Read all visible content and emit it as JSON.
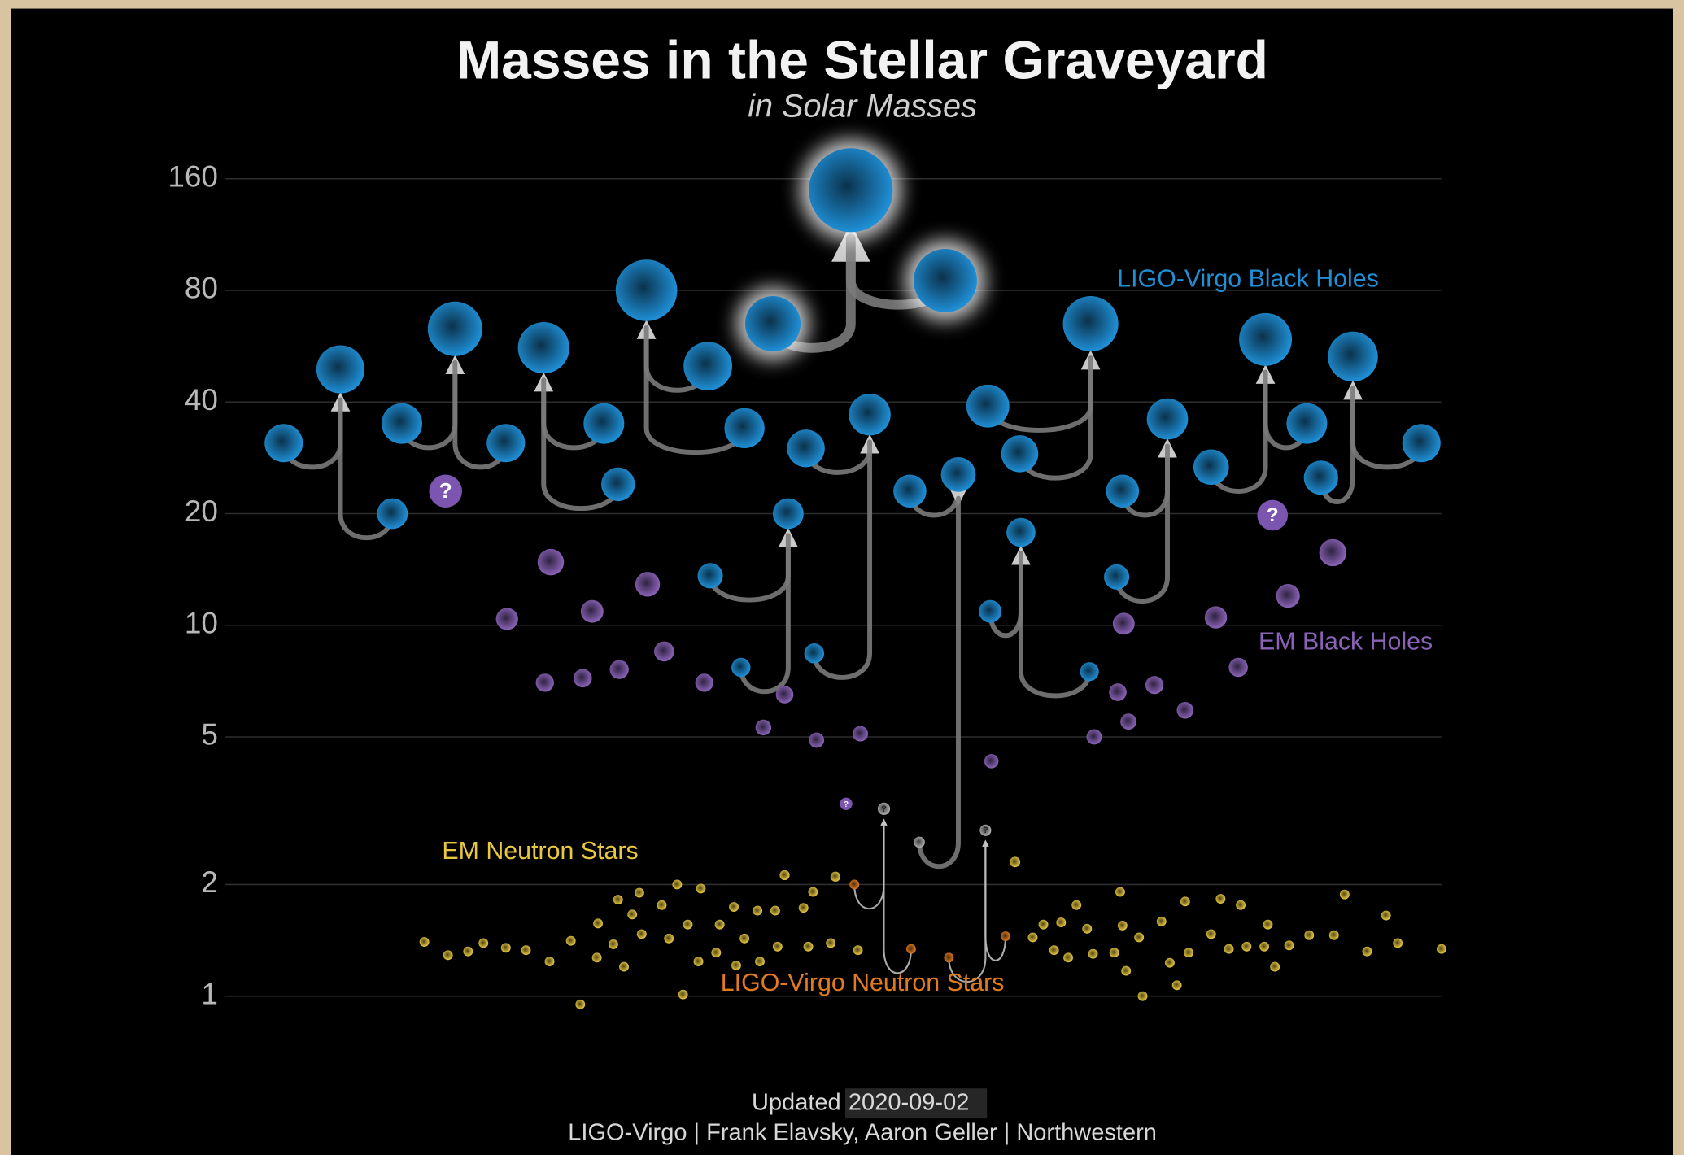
{
  "chart_data": {
    "type": "scatter",
    "title": "Masses in the Stellar Graveyard",
    "subtitle": "in Solar Masses",
    "log_y": true,
    "grid": true,
    "xlim": [
      -2,
      102
    ],
    "ylim": [
      1,
      160
    ],
    "yticks": [
      1,
      2,
      5,
      10,
      20,
      40,
      80,
      160
    ],
    "mass_gap_color": "#b0b0b0",
    "series": [
      {
        "name": "LIGO-Virgo Black Holes",
        "color": "#1f8fd6",
        "mergers": [
          {
            "x": [
              2.2,
              11.4,
              7.0
            ],
            "values": [
              31,
              20,
              49
            ]
          },
          {
            "x": [
              12.2,
              21.0,
              16.7
            ],
            "values": [
              35,
              31,
              63
            ]
          },
          {
            "x": [
              29.3,
              30.5,
              24.2
            ],
            "values": [
              35,
              24,
              56
            ]
          },
          {
            "x": [
              38.1,
              41.2,
              32.9
            ],
            "values": [
              50,
              34,
              80
            ]
          },
          {
            "x": [
              43.6,
              58.2,
              50.2
            ],
            "values": [
              65,
              85,
              149
            ],
            "highlight": true
          },
          {
            "x": [
              38.3,
              40.9,
              44.9
            ],
            "values": [
              13.6,
              7.7,
              20
            ]
          },
          {
            "x": [
              46.4,
              47.1,
              51.8
            ],
            "values": [
              30,
              8.4,
              37
            ]
          },
          {
            "x": [
              55.2,
              56.0,
              59.3
            ],
            "values": [
              23,
              2.6,
              25.5
            ],
            "colors": [
              "#1f8fd6",
              "#b0b0b0",
              "#1f8fd6"
            ]
          },
          {
            "x": [
              61.8,
              64.5,
              70.5
            ],
            "values": [
              39,
              29,
              65
            ]
          },
          {
            "x": [
              62.0,
              70.4,
              64.6
            ],
            "values": [
              10.9,
              7.5,
              17.8
            ]
          },
          {
            "x": [
              73.2,
              72.7,
              77.0
            ],
            "values": [
              23,
              13.5,
              36
            ]
          },
          {
            "x": [
              80.7,
              88.8,
              85.3
            ],
            "values": [
              26.7,
              35,
              59
            ]
          },
          {
            "x": [
              90.0,
              98.5,
              92.7
            ],
            "values": [
              25,
              31,
              53
            ]
          }
        ]
      },
      {
        "name": "EM Black Holes",
        "color": "#8a63b8",
        "x": [
          21.1,
          24.8,
          24.3,
          27.5,
          28.3,
          30.6,
          33.0,
          34.4,
          37.8,
          42.8,
          44.6,
          47.3,
          51.0,
          62.1,
          70.8,
          72.8,
          73.3,
          73.7,
          75.9,
          78.5,
          81.1,
          83.0,
          87.2,
          91.0
        ],
        "values": [
          10.4,
          14.8,
          7.0,
          7.2,
          10.9,
          7.6,
          12.9,
          8.5,
          7.0,
          5.3,
          6.5,
          4.9,
          5.1,
          4.3,
          5.0,
          6.6,
          10.1,
          5.5,
          6.9,
          5.9,
          10.5,
          7.7,
          12.0,
          15.7
        ]
      },
      {
        "name": "EM Neutron Stars",
        "color": "#e8c840",
        "x": [
          14.1,
          16.1,
          17.8,
          19.1,
          21.0,
          22.7,
          24.7,
          26.5,
          27.3,
          28.8,
          28.7,
          30.1,
          30.5,
          31.0,
          31.7,
          32.3,
          32.5,
          34.2,
          34.8,
          35.5,
          36.0,
          36.4,
          37.3,
          37.5,
          38.8,
          39.1,
          40.3,
          40.5,
          41.2,
          42.3,
          42.5,
          43.8,
          44.0,
          44.6,
          46.2,
          46.6,
          47.0,
          48.5,
          48.9,
          50.8,
          64.1,
          65.6,
          66.5,
          67.4,
          68.0,
          68.6,
          69.3,
          70.2,
          70.7,
          72.5,
          73.0,
          73.2,
          73.5,
          74.6,
          74.9,
          76.5,
          77.2,
          77.8,
          78.5,
          78.8,
          80.7,
          81.5,
          82.2,
          83.2,
          83.7,
          85.2,
          85.5,
          86.1,
          87.3,
          89.0,
          91.1,
          92.0,
          93.9,
          95.5,
          96.5,
          100.2
        ],
        "values": [
          1.4,
          1.29,
          1.32,
          1.39,
          1.35,
          1.33,
          1.24,
          1.41,
          0.95,
          1.57,
          1.27,
          1.38,
          1.82,
          1.2,
          1.66,
          1.9,
          1.47,
          1.76,
          1.43,
          2.0,
          1.01,
          1.56,
          1.24,
          1.95,
          1.31,
          1.56,
          1.74,
          1.21,
          1.43,
          1.7,
          1.24,
          1.7,
          1.36,
          2.12,
          1.73,
          1.36,
          1.91,
          1.39,
          2.1,
          1.33,
          2.3,
          1.44,
          1.56,
          1.33,
          1.58,
          1.27,
          1.76,
          1.52,
          1.3,
          1.31,
          1.91,
          1.55,
          1.17,
          1.44,
          1.0,
          1.59,
          1.23,
          1.07,
          1.8,
          1.31,
          1.47,
          1.83,
          1.34,
          1.76,
          1.36,
          1.36,
          1.56,
          1.2,
          1.37,
          1.46,
          1.46,
          1.88,
          1.32,
          1.65,
          1.39,
          1.34
        ]
      },
      {
        "name": "LIGO-Virgo Neutron Stars",
        "color": "#e07b20",
        "final_label": "?",
        "mergers": [
          {
            "x": [
              50.5,
              55.3,
              53.0
            ],
            "values": [
              2.0,
              1.34,
              3.2
            ],
            "colors": [
              "#e07b20",
              "#e07b20",
              "#b0b0b0"
            ]
          },
          {
            "x": [
              58.5,
              63.3,
              61.6
            ],
            "values": [
              1.27,
              1.45,
              2.8
            ],
            "colors": [
              "#e07b20",
              "#e07b20",
              "#b0b0b0"
            ]
          }
        ]
      }
    ],
    "unknown": {
      "label": "?",
      "color": "#7b55b0",
      "x": [
        15.9,
        85.9,
        49.8
      ],
      "values": [
        23,
        19.8,
        3.3
      ]
    },
    "footer": {
      "updated": "Updated",
      "date": "2020-09-02",
      "credits": "LIGO-Virgo | Frank Elavsky, Aaron Geller | Northwestern"
    }
  }
}
